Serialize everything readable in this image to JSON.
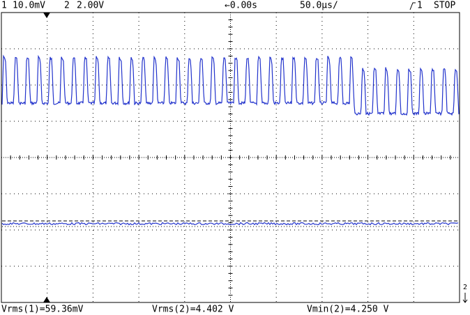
{
  "top_bar": {
    "ch1_number": "1",
    "ch1_scale": "10.0mV",
    "ch2_number": "2",
    "ch2_scale": "2.00V",
    "delay": "←0.00s",
    "timebase": "50.0µs/",
    "trigger_source": "1",
    "status": "STOP"
  },
  "measurements": [
    "Vrms(1)=59.36mV",
    "Vrms(2)=4.402 V",
    "Vmin(2)=4.250 V"
  ],
  "ground_marker": "2"
}
